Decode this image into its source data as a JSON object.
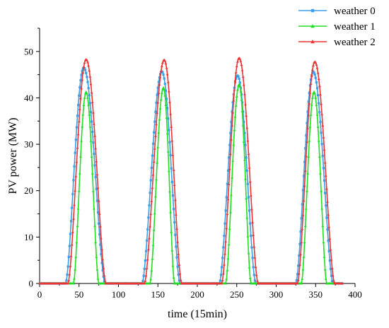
{
  "chart_data": {
    "type": "line",
    "title": "",
    "xlabel": "time (15min)",
    "ylabel": "PV power (MW)",
    "xlim": [
      0,
      400
    ],
    "ylim": [
      0,
      55
    ],
    "x_ticks": [
      0,
      50,
      100,
      150,
      200,
      250,
      300,
      350,
      400
    ],
    "y_ticks": [
      0,
      10,
      20,
      30,
      40,
      50
    ],
    "x_tick_labels": [
      "0",
      "50",
      "100",
      "150",
      "200",
      "250",
      "300",
      "350",
      "400"
    ],
    "y_tick_labels": [
      "0",
      "10",
      "20",
      "30",
      "40",
      "50"
    ],
    "grid": false,
    "legend_position": "top-right",
    "x_range_data": [
      0,
      384
    ],
    "series": [
      {
        "name": "weather 0",
        "color": "#3a9ee8",
        "marker": "square",
        "days": [
          {
            "start": 33,
            "peak_x": 56,
            "peak_y": 46.5,
            "end": 83
          },
          {
            "start": 130,
            "peak_x": 155,
            "peak_y": 45.7,
            "end": 178
          },
          {
            "start": 228,
            "peak_x": 251,
            "peak_y": 44.8,
            "end": 274
          },
          {
            "start": 325,
            "peak_x": 347,
            "peak_y": 45.6,
            "end": 372
          }
        ]
      },
      {
        "name": "weather 1",
        "color": "#22dd22",
        "marker": "triangle",
        "days": [
          {
            "start": 43,
            "peak_x": 59,
            "peak_y": 41.3,
            "end": 75
          },
          {
            "start": 140,
            "peak_x": 157,
            "peak_y": 42.2,
            "end": 171
          },
          {
            "start": 236,
            "peak_x": 253,
            "peak_y": 42.9,
            "end": 268
          },
          {
            "start": 332,
            "peak_x": 348,
            "peak_y": 41.3,
            "end": 364
          }
        ]
      },
      {
        "name": "weather 2",
        "color": "#ee3333",
        "marker": "triangle",
        "days": [
          {
            "start": 36,
            "peak_x": 59,
            "peak_y": 48.3,
            "end": 84
          },
          {
            "start": 133,
            "peak_x": 158,
            "peak_y": 48.2,
            "end": 180
          },
          {
            "start": 231,
            "peak_x": 253,
            "peak_y": 48.6,
            "end": 277
          },
          {
            "start": 327,
            "peak_x": 349,
            "peak_y": 47.8,
            "end": 374
          }
        ]
      }
    ]
  }
}
